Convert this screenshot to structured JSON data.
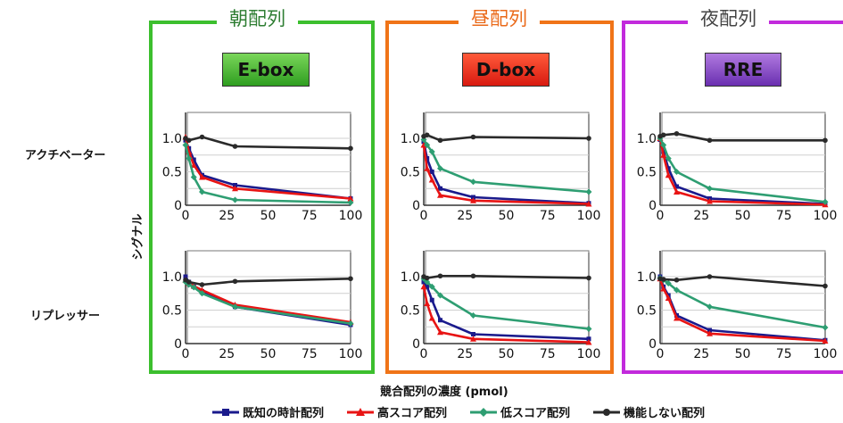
{
  "labels": {
    "row_activator": "アクチベーター",
    "row_repressor": "リプレッサー",
    "y_axis": "シグナル",
    "x_axis": "競合配列の濃度 (pmol)"
  },
  "panels": [
    {
      "title": "朝配列",
      "badge": "E-box",
      "frame_color": "#3cbf2e",
      "title_color": "#2e7d32",
      "badge_from": "#7ad65a",
      "badge_to": "#2f9e20"
    },
    {
      "title": "昼配列",
      "badge": "D-box",
      "frame_color": "#f07418",
      "title_color": "#ea6a1a",
      "badge_from": "#ff5a3a",
      "badge_to": "#d81a10"
    },
    {
      "title": "夜配列",
      "badge": "RRE",
      "frame_color": "#c22adc",
      "title_color": "#444444",
      "badge_from": "#b07ae0",
      "badge_to": "#6a2fb0"
    }
  ],
  "legend": [
    {
      "label": "既知の時計配列",
      "color": "#1a1a8c",
      "marker": "square"
    },
    {
      "label": "高スコア配列",
      "color": "#e81414",
      "marker": "triangle"
    },
    {
      "label": "低スコア配列",
      "color": "#2e9e72",
      "marker": "diamond"
    },
    {
      "label": "機能しない配列",
      "color": "#2a2a2a",
      "marker": "circle"
    }
  ],
  "chart_data": [
    {
      "type": "line",
      "panel": "E-box",
      "row": "アクチベーター",
      "xlim": [
        0,
        100
      ],
      "ylim": [
        0,
        1.2
      ],
      "x_ticks": [
        "0",
        "25",
        "50",
        "75",
        "100"
      ],
      "y_ticks": [
        "0",
        "0.5",
        "1.0"
      ],
      "series": [
        {
          "name": "既知の時計配列",
          "points": [
            [
              0,
              0.97
            ],
            [
              2,
              0.85
            ],
            [
              5,
              0.68
            ],
            [
              10,
              0.45
            ],
            [
              30,
              0.3
            ],
            [
              100,
              0.1
            ]
          ]
        },
        {
          "name": "高スコア配列",
          "points": [
            [
              0,
              1.02
            ],
            [
              2,
              0.8
            ],
            [
              5,
              0.6
            ],
            [
              10,
              0.42
            ],
            [
              30,
              0.25
            ],
            [
              100,
              0.1
            ]
          ]
        },
        {
          "name": "低スコア配列",
          "points": [
            [
              0,
              0.9
            ],
            [
              2,
              0.7
            ],
            [
              5,
              0.42
            ],
            [
              10,
              0.2
            ],
            [
              30,
              0.08
            ],
            [
              100,
              0.04
            ]
          ]
        },
        {
          "name": "機能しない配列",
          "points": [
            [
              0,
              1.0
            ],
            [
              2,
              0.97
            ],
            [
              10,
              1.02
            ],
            [
              30,
              0.88
            ],
            [
              100,
              0.85
            ]
          ]
        }
      ]
    },
    {
      "type": "line",
      "panel": "D-box",
      "row": "アクチベーター",
      "xlim": [
        0,
        100
      ],
      "ylim": [
        0,
        1.2
      ],
      "x_ticks": [
        "0",
        "25",
        "50",
        "75",
        "100"
      ],
      "y_ticks": [
        "0",
        "0.5",
        "1.0"
      ],
      "series": [
        {
          "name": "既知の時計配列",
          "points": [
            [
              0,
              0.95
            ],
            [
              2,
              0.7
            ],
            [
              5,
              0.5
            ],
            [
              10,
              0.25
            ],
            [
              30,
              0.12
            ],
            [
              100,
              0.03
            ]
          ]
        },
        {
          "name": "高スコア配列",
          "points": [
            [
              0,
              0.9
            ],
            [
              2,
              0.55
            ],
            [
              5,
              0.38
            ],
            [
              10,
              0.15
            ],
            [
              30,
              0.07
            ],
            [
              100,
              0.02
            ]
          ]
        },
        {
          "name": "低スコア配列",
          "points": [
            [
              0,
              0.98
            ],
            [
              2,
              0.9
            ],
            [
              5,
              0.8
            ],
            [
              10,
              0.55
            ],
            [
              30,
              0.35
            ],
            [
              100,
              0.2
            ]
          ]
        },
        {
          "name": "機能しない配列",
          "points": [
            [
              0,
              1.03
            ],
            [
              2,
              1.05
            ],
            [
              10,
              0.97
            ],
            [
              30,
              1.02
            ],
            [
              100,
              1.0
            ]
          ]
        }
      ]
    },
    {
      "type": "line",
      "panel": "RRE",
      "row": "アクチベーター",
      "xlim": [
        0,
        100
      ],
      "ylim": [
        0,
        1.2
      ],
      "x_ticks": [
        "0",
        "25",
        "50",
        "75",
        "100"
      ],
      "y_ticks": [
        "0",
        "0.5",
        "1.0"
      ],
      "series": [
        {
          "name": "既知の時計配列",
          "points": [
            [
              0,
              0.98
            ],
            [
              2,
              0.8
            ],
            [
              5,
              0.55
            ],
            [
              10,
              0.28
            ],
            [
              30,
              0.1
            ],
            [
              100,
              0.02
            ]
          ]
        },
        {
          "name": "高スコア配列",
          "points": [
            [
              0,
              1.0
            ],
            [
              2,
              0.75
            ],
            [
              5,
              0.45
            ],
            [
              10,
              0.2
            ],
            [
              30,
              0.06
            ],
            [
              100,
              0.01
            ]
          ]
        },
        {
          "name": "低スコア配列",
          "points": [
            [
              0,
              1.0
            ],
            [
              2,
              0.9
            ],
            [
              5,
              0.7
            ],
            [
              10,
              0.5
            ],
            [
              30,
              0.25
            ],
            [
              100,
              0.05
            ]
          ]
        },
        {
          "name": "機能しない配列",
          "points": [
            [
              0,
              1.03
            ],
            [
              2,
              1.05
            ],
            [
              10,
              1.07
            ],
            [
              30,
              0.97
            ],
            [
              100,
              0.97
            ]
          ]
        }
      ]
    },
    {
      "type": "line",
      "panel": "E-box",
      "row": "リプレッサー",
      "xlim": [
        0,
        100
      ],
      "ylim": [
        0,
        1.2
      ],
      "x_ticks": [
        "0",
        "25",
        "50",
        "75",
        "100"
      ],
      "y_ticks": [
        "0",
        "0.5",
        "1.0"
      ],
      "series": [
        {
          "name": "既知の時計配列",
          "points": [
            [
              0,
              1.0
            ],
            [
              2,
              0.92
            ],
            [
              5,
              0.85
            ],
            [
              10,
              0.78
            ],
            [
              30,
              0.55
            ],
            [
              100,
              0.28
            ]
          ]
        },
        {
          "name": "高スコア配列",
          "points": [
            [
              0,
              0.95
            ],
            [
              2,
              0.9
            ],
            [
              5,
              0.86
            ],
            [
              10,
              0.8
            ],
            [
              30,
              0.58
            ],
            [
              100,
              0.32
            ]
          ]
        },
        {
          "name": "低スコア配列",
          "points": [
            [
              0,
              0.92
            ],
            [
              2,
              0.88
            ],
            [
              5,
              0.84
            ],
            [
              10,
              0.75
            ],
            [
              30,
              0.55
            ],
            [
              100,
              0.3
            ]
          ]
        },
        {
          "name": "機能しない配列",
          "points": [
            [
              0,
              0.95
            ],
            [
              2,
              0.92
            ],
            [
              10,
              0.88
            ],
            [
              30,
              0.93
            ],
            [
              100,
              0.97
            ]
          ]
        }
      ]
    },
    {
      "type": "line",
      "panel": "D-box",
      "row": "リプレッサー",
      "xlim": [
        0,
        100
      ],
      "ylim": [
        0,
        1.2
      ],
      "x_ticks": [
        "0",
        "25",
        "50",
        "75",
        "100"
      ],
      "y_ticks": [
        "0",
        "0.5",
        "1.0"
      ],
      "series": [
        {
          "name": "既知の時計配列",
          "points": [
            [
              0,
              0.92
            ],
            [
              2,
              0.85
            ],
            [
              5,
              0.65
            ],
            [
              10,
              0.35
            ],
            [
              30,
              0.14
            ],
            [
              100,
              0.07
            ]
          ]
        },
        {
          "name": "高スコア配列",
          "points": [
            [
              0,
              0.85
            ],
            [
              2,
              0.6
            ],
            [
              5,
              0.38
            ],
            [
              10,
              0.17
            ],
            [
              30,
              0.07
            ],
            [
              100,
              0.02
            ]
          ]
        },
        {
          "name": "低スコア配列",
          "points": [
            [
              0,
              0.97
            ],
            [
              2,
              0.92
            ],
            [
              5,
              0.85
            ],
            [
              10,
              0.72
            ],
            [
              30,
              0.42
            ],
            [
              100,
              0.22
            ]
          ]
        },
        {
          "name": "機能しない配列",
          "points": [
            [
              0,
              1.0
            ],
            [
              2,
              0.98
            ],
            [
              10,
              1.01
            ],
            [
              30,
              1.01
            ],
            [
              100,
              0.98
            ]
          ]
        }
      ]
    },
    {
      "type": "line",
      "panel": "RRE",
      "row": "リプレッサー",
      "xlim": [
        0,
        100
      ],
      "ylim": [
        0,
        1.2
      ],
      "x_ticks": [
        "0",
        "25",
        "50",
        "75",
        "100"
      ],
      "y_ticks": [
        "0",
        "0.5",
        "1.0"
      ],
      "series": [
        {
          "name": "既知の時計配列",
          "points": [
            [
              0,
              1.0
            ],
            [
              2,
              0.85
            ],
            [
              5,
              0.72
            ],
            [
              10,
              0.42
            ],
            [
              30,
              0.2
            ],
            [
              100,
              0.05
            ]
          ]
        },
        {
          "name": "高スコア配列",
          "points": [
            [
              0,
              0.97
            ],
            [
              2,
              0.82
            ],
            [
              5,
              0.68
            ],
            [
              10,
              0.38
            ],
            [
              30,
              0.15
            ],
            [
              100,
              0.04
            ]
          ]
        },
        {
          "name": "低スコア配列",
          "points": [
            [
              0,
              0.98
            ],
            [
              2,
              0.95
            ],
            [
              5,
              0.9
            ],
            [
              10,
              0.8
            ],
            [
              30,
              0.55
            ],
            [
              100,
              0.24
            ]
          ]
        },
        {
          "name": "機能しない配列",
          "points": [
            [
              0,
              0.97
            ],
            [
              2,
              0.96
            ],
            [
              10,
              0.95
            ],
            [
              30,
              1.0
            ],
            [
              100,
              0.86
            ]
          ]
        }
      ]
    }
  ]
}
